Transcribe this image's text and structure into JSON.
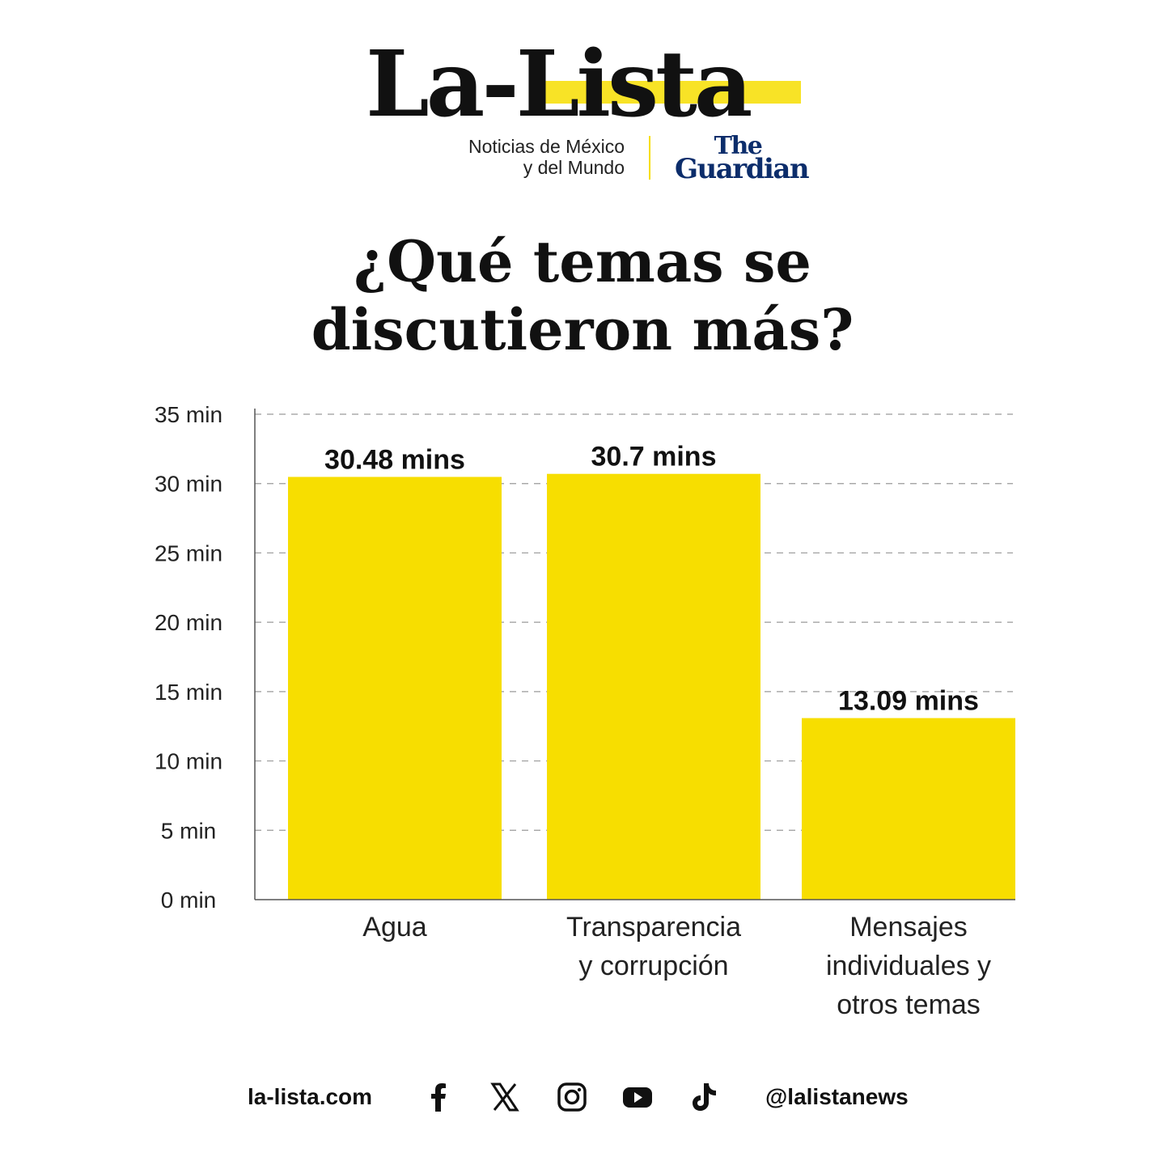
{
  "brand": {
    "name": "La-Lista",
    "tagline_line1": "Noticias de México",
    "tagline_line2": "y del Mundo",
    "partner_line1": "The",
    "partner_line2": "Guardian",
    "accent_color": "#f7de00",
    "partner_color": "#0c2d6b"
  },
  "title_line1": "¿Qué temas se",
  "title_line2": "discutieron más?",
  "chart_data": {
    "type": "bar",
    "categories": [
      [
        "Agua"
      ],
      [
        "Transparencia",
        "y corrupción"
      ],
      [
        "Mensajes",
        "individuales y",
        "otros temas"
      ]
    ],
    "values": [
      30.48,
      30.7,
      13.09
    ],
    "value_labels": [
      "30.48 mins",
      "30.7 mins",
      "13.09 mins"
    ],
    "yticks": [
      0,
      5,
      10,
      15,
      20,
      25,
      30,
      35
    ],
    "ytick_labels": [
      "0 min",
      "5 min",
      "10 min",
      "15 min",
      "20 min",
      "25 min",
      "30 min",
      "35 min"
    ],
    "ylim": [
      0,
      35
    ],
    "grid": "dashed horizontal",
    "bar_color": "#f7de00"
  },
  "footer": {
    "site": "la-lista.com",
    "handle": "@lalistanews",
    "icons": [
      "facebook-icon",
      "x-icon",
      "instagram-icon",
      "youtube-icon",
      "tiktok-icon"
    ]
  }
}
